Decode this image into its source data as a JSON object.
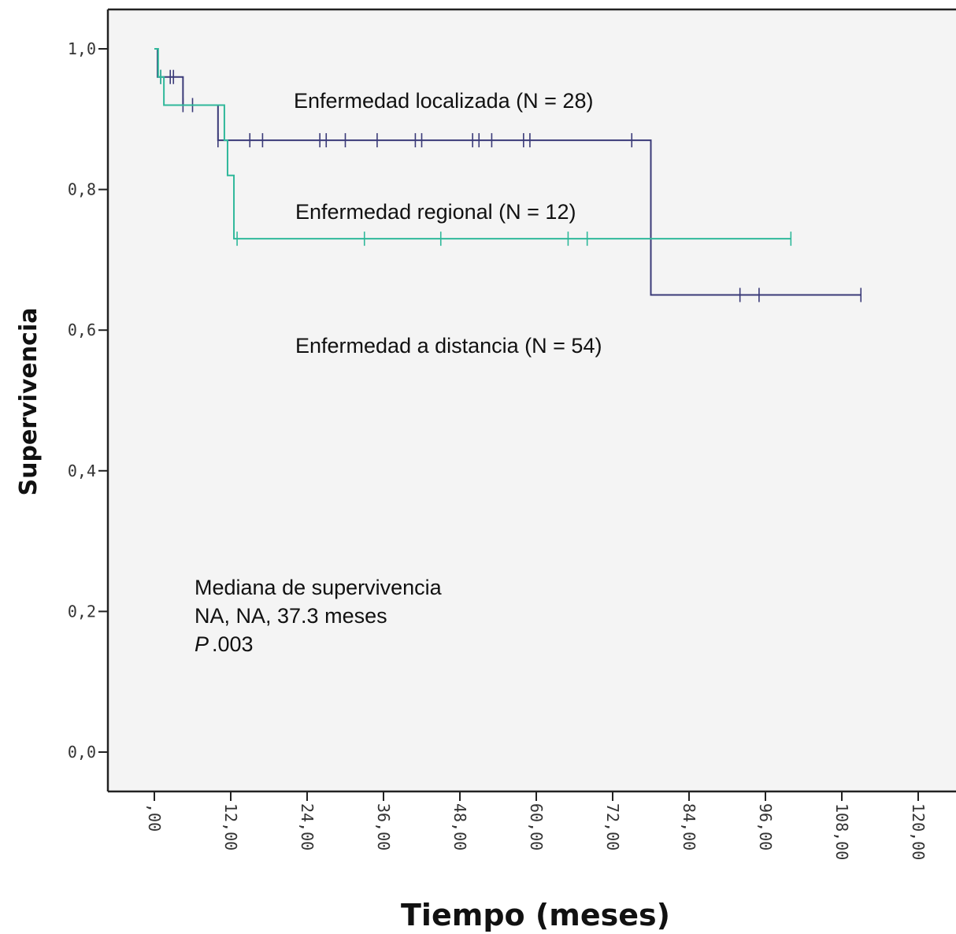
{
  "chart_data": {
    "type": "line",
    "chart_subtype": "kaplan-meier",
    "xlabel": "Tiempo (meses)",
    "ylabel": "Supervivencia",
    "xlim": [
      0,
      120
    ],
    "ylim": [
      0,
      1
    ],
    "x_tick_labels": [
      ",00",
      "12,00",
      "24,00",
      "36,00",
      "48,00",
      "60,00",
      "72,00",
      "84,00",
      "96,00",
      "108,00",
      "120,00"
    ],
    "y_tick_labels": [
      "0,0",
      "0,2",
      "0,4",
      "0,6",
      "0,8",
      "1,0"
    ],
    "grid": false,
    "annotations": {
      "localizada_label": "Enfermedad localizada (N = 28)",
      "regional_label": "Enfermedad regional (N = 12)",
      "distancia_label": "Enfermedad a distancia (N = 54)",
      "median_line1": "Mediana de supervivencia",
      "median_line2": "NA, NA, 37.3 meses",
      "p_italic": "P",
      "p_value": ".003"
    },
    "series": [
      {
        "color": "#3a3a78",
        "steps": [
          [
            0,
            1.0
          ],
          [
            0.5,
            0.96
          ],
          [
            4.5,
            0.92
          ],
          [
            10,
            0.87
          ],
          [
            78,
            0.65
          ],
          [
            111,
            0.65
          ]
        ],
        "censor_times": [
          1,
          2.5,
          3,
          4.5,
          6,
          10,
          15,
          17,
          26,
          27,
          30,
          35,
          41,
          42,
          50,
          51,
          53,
          58,
          59,
          75,
          92,
          95,
          111
        ]
      },
      {
        "color": "#2fb89a",
        "steps": [
          [
            0,
            1.0
          ],
          [
            0.6,
            0.96
          ],
          [
            1.5,
            0.92
          ],
          [
            11,
            0.87
          ],
          [
            11.5,
            0.82
          ],
          [
            12.5,
            0.73
          ],
          [
            100,
            0.73
          ]
        ],
        "censor_times": [
          1,
          13,
          33,
          45,
          65,
          68,
          100
        ]
      }
    ]
  }
}
